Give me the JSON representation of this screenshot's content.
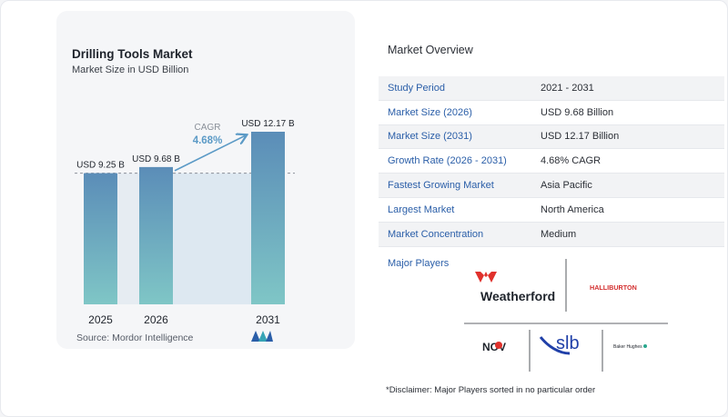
{
  "chart": {
    "title": "Drilling Tools Market",
    "subtitle": "Market Size in USD Billion",
    "source": "Source:  Mordor Intelligence",
    "cagr_label": "CAGR",
    "cagr_value": "4.68%"
  },
  "chart_data": {
    "type": "bar",
    "categories": [
      "2025",
      "2026",
      "2031"
    ],
    "values": [
      9.25,
      9.68,
      12.17
    ],
    "data_labels": [
      "USD 9.25 B",
      "USD 9.68 B",
      "USD 12.17 B"
    ],
    "title": "Drilling Tools Market",
    "subtitle": "Market Size in USD Billion",
    "xlabel": "",
    "ylabel": "",
    "ylim": [
      0,
      12.17
    ],
    "annotation": "CAGR 4.68%",
    "colors": {
      "bar_top": "#5b8db8",
      "bar_bottom": "#7fc6c6",
      "accent": "#5b9ac6"
    }
  },
  "overview": {
    "title": "Market Overview",
    "rows": [
      {
        "key": "Study Period",
        "value": "2021 - 2031"
      },
      {
        "key": "Market Size (2026)",
        "value": "USD 9.68 Billion"
      },
      {
        "key": "Market Size (2031)",
        "value": "USD 12.17 Billion"
      },
      {
        "key": "Growth Rate (2026 - 2031)",
        "value": "4.68% CAGR"
      },
      {
        "key": "Fastest Growing Market",
        "value": "Asia Pacific"
      },
      {
        "key": "Largest Market",
        "value": "North America"
      },
      {
        "key": "Market Concentration",
        "value": "Medium"
      }
    ],
    "major_players_label": "Major Players",
    "players": [
      "Weatherford",
      "HALLIBURTON",
      "NOV",
      "slb",
      "Baker Hughes"
    ],
    "disclaimer": "*Disclaimer: Major Players sorted in no particular order"
  }
}
